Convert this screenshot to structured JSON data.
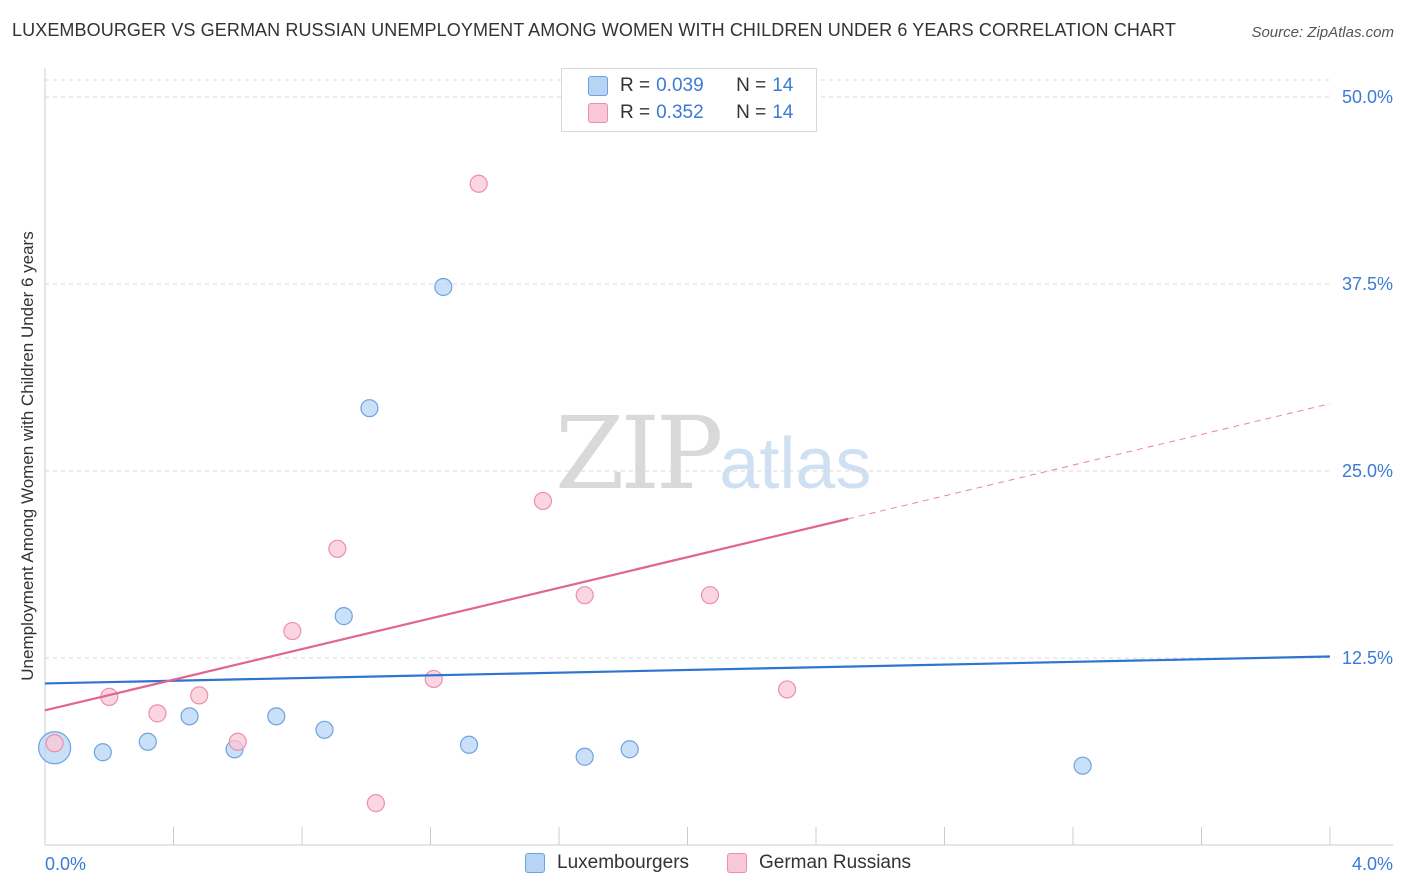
{
  "header": {
    "title": "LUXEMBOURGER VS GERMAN RUSSIAN UNEMPLOYMENT AMONG WOMEN WITH CHILDREN UNDER 6 YEARS CORRELATION CHART",
    "source": "Source: ZipAtlas.com"
  },
  "legend": {
    "r_label": "R =",
    "n_label": "N =",
    "series": [
      {
        "r": "0.039",
        "n": "14"
      },
      {
        "r": "0.352",
        "n": "14"
      }
    ]
  },
  "watermark": {
    "zip": "ZIP",
    "atlas": "atlas"
  },
  "colors": {
    "lux_fill": "#b8d4f5",
    "lux_stroke": "#6fa3e0",
    "lux_line": "#2f74cf",
    "gr_fill": "#f9c8d6",
    "gr_stroke": "#ec8fac",
    "gr_line": "#e0668f",
    "tick_text": "#3a7bd5",
    "grid": "#d9d9d9"
  },
  "chart_data": {
    "type": "scatter",
    "title": "LUXEMBOURGER VS GERMAN RUSSIAN UNEMPLOYMENT AMONG WOMEN WITH CHILDREN UNDER 6 YEARS CORRELATION CHART",
    "xlabel": "",
    "ylabel": "Unemployment Among Women with Children Under 6 years",
    "xlim": [
      0,
      4.0
    ],
    "ylim": [
      0,
      50
    ],
    "x_tick_labels": [
      "0.0%",
      "4.0%"
    ],
    "y_ticks": [
      12.5,
      25.0,
      37.5,
      50.0
    ],
    "y_tick_labels": [
      "12.5%",
      "25.0%",
      "37.5%",
      "50.0%"
    ],
    "grid": true,
    "legend_position": "bottom",
    "series": [
      {
        "name": "Luxembourgers",
        "points": [
          {
            "x": 0.03,
            "y": 6.5,
            "big": true
          },
          {
            "x": 0.18,
            "y": 6.2
          },
          {
            "x": 0.32,
            "y": 6.9
          },
          {
            "x": 0.45,
            "y": 8.6
          },
          {
            "x": 0.59,
            "y": 6.4
          },
          {
            "x": 0.72,
            "y": 8.6
          },
          {
            "x": 0.87,
            "y": 7.7
          },
          {
            "x": 1.01,
            "y": 29.2
          },
          {
            "x": 0.93,
            "y": 15.3
          },
          {
            "x": 1.32,
            "y": 6.7
          },
          {
            "x": 1.24,
            "y": 37.3
          },
          {
            "x": 1.68,
            "y": 5.9
          },
          {
            "x": 1.82,
            "y": 6.4
          },
          {
            "x": 3.23,
            "y": 5.3
          }
        ],
        "trend": {
          "x0": 0.0,
          "y0": 10.8,
          "x1": 4.0,
          "y1": 12.6
        }
      },
      {
        "name": "German Russians",
        "points": [
          {
            "x": 0.03,
            "y": 6.8
          },
          {
            "x": 0.2,
            "y": 9.9
          },
          {
            "x": 0.35,
            "y": 8.8
          },
          {
            "x": 0.48,
            "y": 10.0
          },
          {
            "x": 0.6,
            "y": 6.9
          },
          {
            "x": 0.77,
            "y": 14.3
          },
          {
            "x": 0.91,
            "y": 19.8
          },
          {
            "x": 1.03,
            "y": 2.8
          },
          {
            "x": 1.21,
            "y": 11.1
          },
          {
            "x": 1.35,
            "y": 44.2
          },
          {
            "x": 1.55,
            "y": 23.0
          },
          {
            "x": 1.68,
            "y": 16.7
          },
          {
            "x": 2.07,
            "y": 16.7
          },
          {
            "x": 2.31,
            "y": 10.4
          }
        ],
        "trend": {
          "x0": 0.0,
          "y0": 9.0,
          "x1": 2.5,
          "y1": 21.8,
          "x_dash_end": 4.0,
          "y_dash_end": 29.5
        }
      }
    ]
  }
}
